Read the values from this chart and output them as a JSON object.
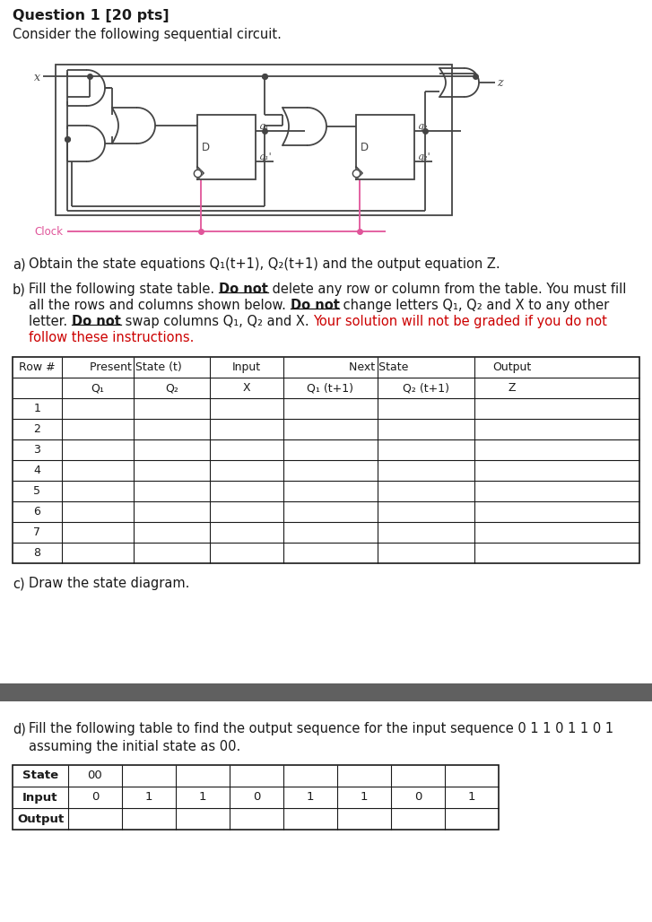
{
  "title": "Question 1 [20 pts]",
  "subtitle": "Consider the following sequential circuit.",
  "bg_color": "#ffffff",
  "text_color": "#1a1a1a",
  "red_color": "#cc0000",
  "pink_color": "#e0559a",
  "circuit_color": "#444444",
  "dark_bar_color": "#606060",
  "table1_rows": [
    "1",
    "2",
    "3",
    "4",
    "5",
    "6",
    "7",
    "8"
  ],
  "input_sequence": [
    "0",
    "1",
    "1",
    "0",
    "1",
    "1",
    "0",
    "1"
  ],
  "state_initial": "00"
}
